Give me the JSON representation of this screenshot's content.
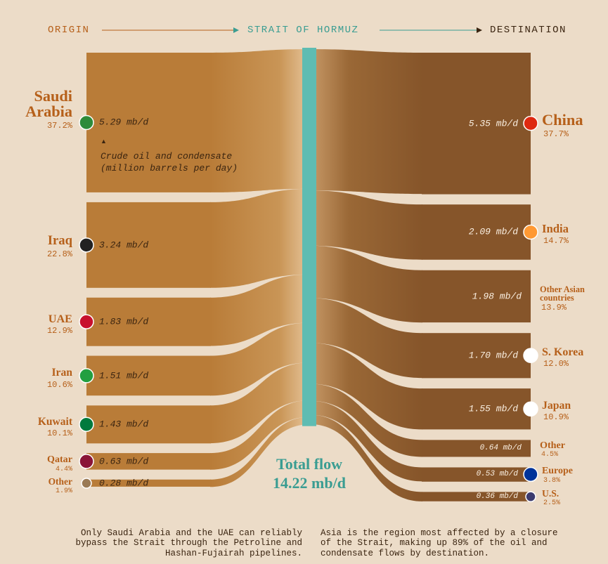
{
  "chart_data": {
    "type": "sankey",
    "header": {
      "origin": "ORIGIN",
      "middle": "STRAIT OF HORMUZ",
      "destination": "DESTINATION"
    },
    "note": [
      "Crude oil and condensate",
      "(million barrels per day)"
    ],
    "sources": {
      "names": [
        "Saudi Arabia",
        "Iraq",
        "UAE",
        "Iran",
        "Kuwait",
        "Qatar",
        "Other"
      ],
      "values": [
        5.29,
        3.24,
        1.83,
        1.51,
        1.43,
        0.63,
        0.28
      ],
      "value_labels": [
        "5.29 mb/d",
        "3.24 mb/d",
        "1.83 mb/d",
        "1.51 mb/d",
        "1.43 mb/d",
        "0.63 mb/d",
        "0.28 mb/d"
      ],
      "shares": [
        37.2,
        22.8,
        12.9,
        10.6,
        10.1,
        4.4,
        1.9
      ],
      "share_labels": [
        "37.2%",
        "22.8%",
        "12.9%",
        "10.6%",
        "10.1%",
        "4.4%",
        "1.9%"
      ]
    },
    "destinations": {
      "names": [
        "China",
        "India",
        "Other Asian countries",
        "S. Korea",
        "Japan",
        "Other",
        "Europe",
        "U.S."
      ],
      "values": [
        5.35,
        2.09,
        1.98,
        1.7,
        1.55,
        0.64,
        0.53,
        0.36
      ],
      "value_labels": [
        "5.35 mb/d",
        "2.09 mb/d",
        "1.98 mb/d",
        "1.70 mb/d",
        "1.55 mb/d",
        "0.64 mb/d",
        "0.53 mb/d",
        "0.36 mb/d"
      ],
      "shares": [
        37.7,
        14.7,
        13.9,
        12.0,
        10.9,
        4.5,
        3.8,
        2.5
      ],
      "share_labels": [
        "37.7%",
        "14.7%",
        "13.9%",
        "12.0%",
        "10.9%",
        "4.5%",
        "3.8%",
        "2.5%"
      ]
    },
    "total": {
      "title": "Total flow",
      "value": 14.22,
      "value_label": "14.22 mb/d"
    },
    "footnotes": [
      "Only Saudi Arabia and the UAE can reliably bypass the Strait through the Petroline and Hashan-Fujairah pipelines.",
      "Asia is the region most affected by a closure of the Strait, making up 89% of the oil and condensate flows by destination."
    ]
  }
}
